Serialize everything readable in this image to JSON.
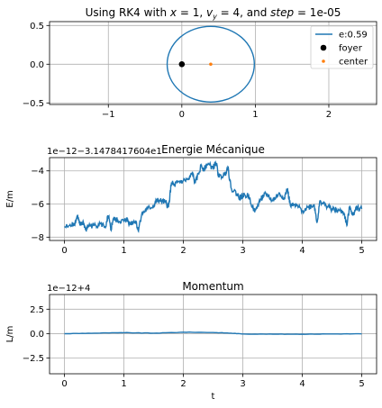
{
  "chart_data": [
    {
      "type": "line",
      "title": "Using RK4 with x = 1, v_y = 4, and step = 1e-05",
      "title_parts": [
        "Using RK4 with ",
        "x",
        " = 1, ",
        "v",
        "y",
        " = 4, and ",
        "step",
        " = 1e-05"
      ],
      "xlabel": "",
      "ylabel": "",
      "xlim": [
        -1.8,
        2.65
      ],
      "ylim": [
        -0.52,
        0.55
      ],
      "xticks": [
        -1,
        0,
        1,
        2
      ],
      "xtick_labels": [
        "−1",
        "0",
        "1",
        "2"
      ],
      "yticks": [
        -0.5,
        0.0,
        0.5
      ],
      "ytick_labels": [
        "−0.5",
        "0.0",
        "0.5"
      ],
      "grid": true,
      "legend": {
        "position": "top-right",
        "entries": [
          "e:0.59",
          "foyer",
          "center"
        ]
      },
      "series": [
        {
          "name": "e:0.59",
          "kind": "ellipse",
          "cx": 0.3934,
          "cy": 0.0,
          "a": 0.5934,
          "b": 0.4885,
          "color": "#1f77b4"
        },
        {
          "name": "foyer",
          "kind": "point",
          "x": 0.0,
          "y": 0.0,
          "color": "#000000"
        },
        {
          "name": "center",
          "kind": "point",
          "x": 0.3934,
          "y": 0.0,
          "color": "#ff7f0e"
        }
      ]
    },
    {
      "type": "line",
      "title": "Energie Mécanique",
      "xlabel": "",
      "ylabel": "E/m",
      "offset_text": "1e−12−3.1478417604e1",
      "xlim": [
        -0.25,
        5.25
      ],
      "ylim": [
        -8.2,
        -3.2
      ],
      "xticks": [
        0,
        1,
        2,
        3,
        4,
        5
      ],
      "xtick_labels": [
        "0",
        "1",
        "2",
        "3",
        "4",
        "5"
      ],
      "yticks": [
        -8,
        -6,
        -4
      ],
      "ytick_labels": [
        "−8",
        "−6",
        "−4"
      ],
      "grid": true,
      "series": [
        {
          "name": "E/m",
          "color": "#1f77b4",
          "x": [
            0,
            0.12,
            0.18,
            0.22,
            0.26,
            0.32,
            0.36,
            0.4,
            0.5,
            0.6,
            0.7,
            0.74,
            0.78,
            0.82,
            0.9,
            1.0,
            1.05,
            1.1,
            1.2,
            1.24,
            1.3,
            1.4,
            1.5,
            1.55,
            1.6,
            1.7,
            1.75,
            1.8,
            1.85,
            1.9,
            2.0,
            2.1,
            2.15,
            2.2,
            2.3,
            2.35,
            2.4,
            2.5,
            2.55,
            2.6,
            2.7,
            2.75,
            2.8,
            2.9,
            2.95,
            3.0,
            3.1,
            3.2,
            3.3,
            3.35,
            3.4,
            3.5,
            3.6,
            3.7,
            3.75,
            3.8,
            3.9,
            4.0,
            4.1,
            4.2,
            4.25,
            4.3,
            4.4,
            4.5,
            4.6,
            4.7,
            4.75,
            4.8,
            4.85,
            4.9,
            5.0
          ],
          "values": [
            -7.4,
            -7.3,
            -7.1,
            -6.7,
            -7.3,
            -7.1,
            -7.6,
            -7.3,
            -7.3,
            -7.2,
            -7.35,
            -6.7,
            -7.6,
            -6.9,
            -7.0,
            -7.05,
            -6.9,
            -7.2,
            -7.0,
            -7.6,
            -6.6,
            -6.3,
            -6.1,
            -5.8,
            -5.8,
            -5.9,
            -6.2,
            -4.7,
            -4.9,
            -4.7,
            -4.6,
            -4.5,
            -4.1,
            -4.75,
            -3.7,
            -3.9,
            -3.6,
            -3.8,
            -3.5,
            -4.4,
            -4.2,
            -3.75,
            -5.0,
            -5.4,
            -5.6,
            -5.5,
            -5.5,
            -6.5,
            -5.7,
            -5.5,
            -5.4,
            -5.8,
            -5.4,
            -5.6,
            -5.1,
            -6.1,
            -6.1,
            -6.4,
            -6.2,
            -6.05,
            -7.1,
            -5.8,
            -6.1,
            -6.3,
            -6.4,
            -6.5,
            -7.3,
            -6.1,
            -6.7,
            -6.2,
            -6.3
          ]
        }
      ]
    },
    {
      "type": "line",
      "title": "Momentum",
      "xlabel": "t",
      "ylabel": "L/m",
      "offset_text": "1e−12+4",
      "xlim": [
        -0.25,
        5.25
      ],
      "ylim": [
        -4.1,
        4.0
      ],
      "xticks": [
        0,
        1,
        2,
        3,
        4,
        5
      ],
      "xtick_labels": [
        "0",
        "1",
        "2",
        "3",
        "4",
        "5"
      ],
      "yticks": [
        -2.5,
        0.0,
        2.5
      ],
      "ytick_labels": [
        "−2.5",
        "0.0",
        "2.5"
      ],
      "grid": true,
      "series": [
        {
          "name": "L/m",
          "color": "#1f77b4",
          "x": [
            0,
            0.5,
            1.0,
            1.5,
            2.0,
            2.5,
            2.8,
            3.0,
            3.5,
            4.0,
            4.5,
            5.0
          ],
          "values": [
            0.0,
            0.05,
            0.1,
            0.05,
            0.15,
            0.12,
            0.05,
            -0.03,
            -0.05,
            -0.05,
            -0.03,
            -0.02
          ]
        }
      ]
    }
  ]
}
